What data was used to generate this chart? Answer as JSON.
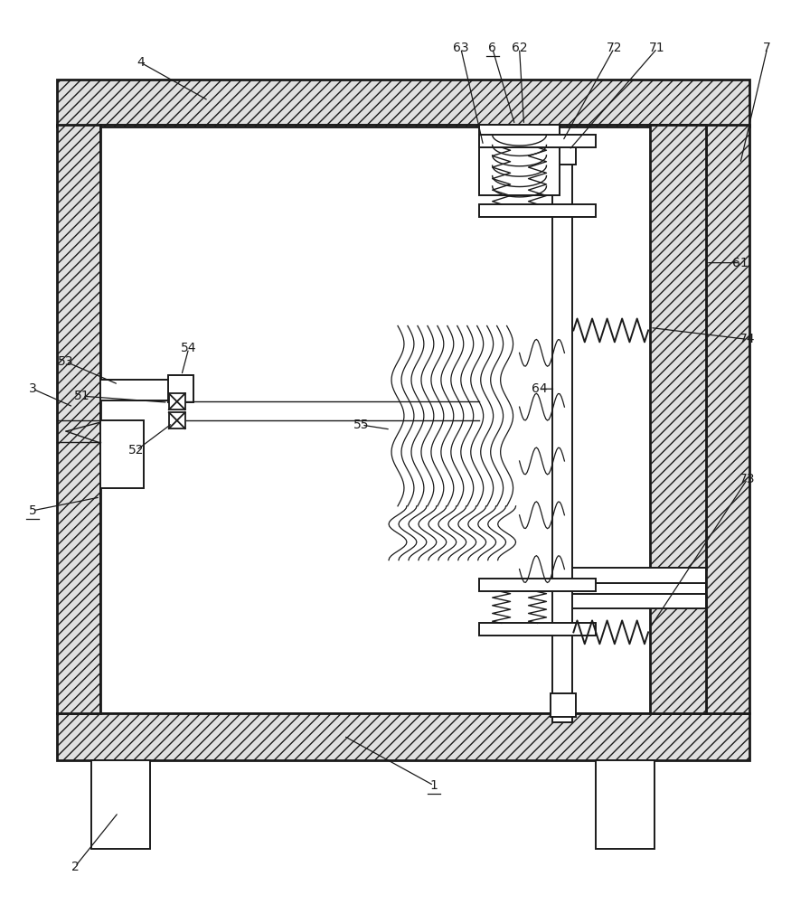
{
  "bg_color": "#ffffff",
  "line_color": "#1a1a1a",
  "figsize": [
    8.75,
    10.0
  ],
  "dpi": 100,
  "label_fs": 10
}
